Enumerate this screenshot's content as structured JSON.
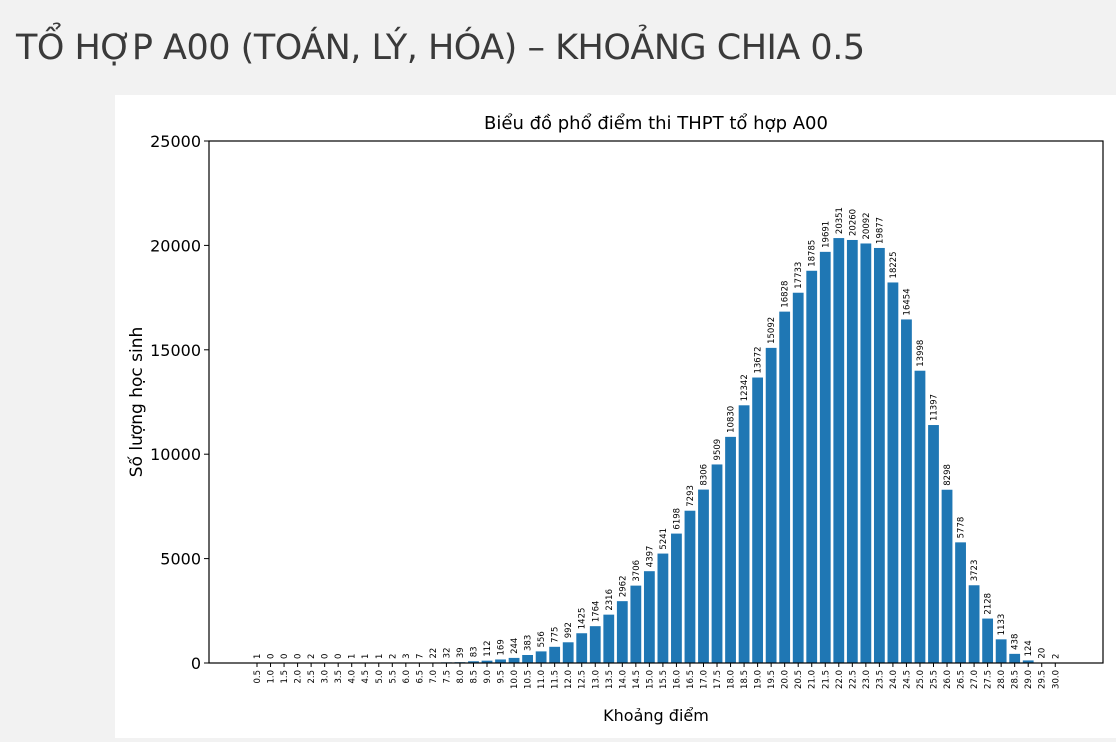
{
  "slide": {
    "title": "TỔ HỢP A00 (TOÁN, LÝ, HÓA) – KHOẢNG CHIA 0.5"
  },
  "colors": {
    "bar": "#1f77b4",
    "background": "#f2f2f2",
    "panel": "#ffffff"
  },
  "chart_data": {
    "type": "bar",
    "title": "Biểu đồ phổ điểm thi THPT tổ hợp A00",
    "xlabel": "Khoảng điểm",
    "ylabel": "Số lượng học sinh",
    "ylim": [
      0,
      25000
    ],
    "yticks": [
      0,
      5000,
      10000,
      15000,
      20000,
      25000
    ],
    "grid": false,
    "categories": [
      "0.5",
      "1.0",
      "1.5",
      "2.0",
      "2.5",
      "3.0",
      "3.5",
      "4.0",
      "4.5",
      "5.0",
      "5.5",
      "6.0",
      "6.5",
      "7.0",
      "7.5",
      "8.0",
      "8.5",
      "9.0",
      "9.5",
      "10.0",
      "10.5",
      "11.0",
      "11.5",
      "12.0",
      "12.5",
      "13.0",
      "13.5",
      "14.0",
      "14.5",
      "15.0",
      "15.5",
      "16.0",
      "16.5",
      "17.0",
      "17.5",
      "18.0",
      "18.5",
      "19.0",
      "19.5",
      "20.0",
      "20.5",
      "21.0",
      "21.5",
      "22.0",
      "22.5",
      "23.0",
      "23.5",
      "24.0",
      "24.5",
      "25.0",
      "25.5",
      "26.0",
      "26.5",
      "27.0",
      "27.5",
      "28.0",
      "28.5",
      "29.0",
      "29.5",
      "30.0"
    ],
    "values": [
      1,
      0,
      0,
      0,
      2,
      0,
      0,
      1,
      1,
      1,
      2,
      3,
      7,
      22,
      32,
      39,
      83,
      112,
      169,
      244,
      383,
      556,
      775,
      992,
      1425,
      1764,
      2316,
      2962,
      3706,
      4397,
      5241,
      6198,
      7293,
      8306,
      9509,
      10830,
      12342,
      13672,
      15092,
      16828,
      17733,
      18785,
      19691,
      20351,
      20260,
      20092,
      19877,
      18225,
      16454,
      13998,
      11397,
      8298,
      5778,
      3723,
      2128,
      1133,
      438,
      124,
      20,
      2
    ]
  }
}
